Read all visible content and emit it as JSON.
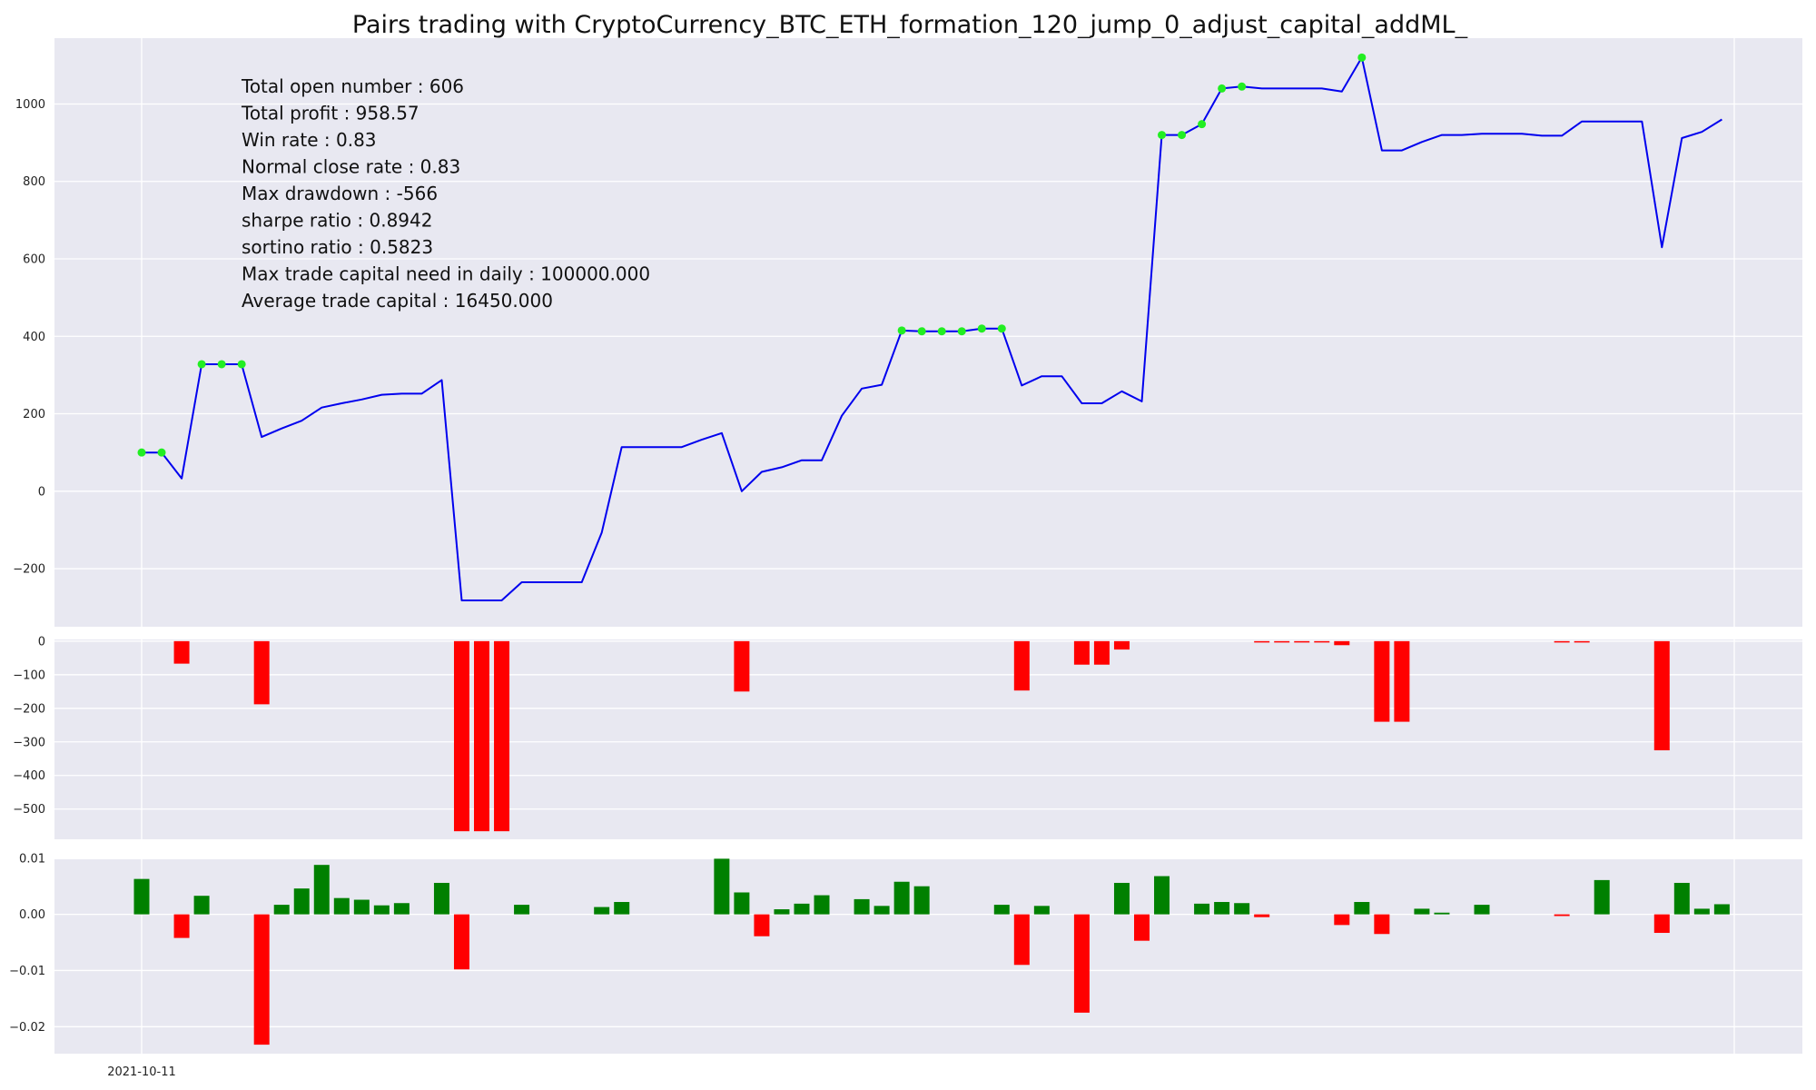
{
  "chart_data": {
    "title": "Pairs trading with CryptoCurrency_BTC_ETH_formation_120_jump_0_adjust_capital_addML_",
    "stats": [
      "Total open number : 606",
      "Total profit : 958.57",
      "Win rate : 0.83",
      "Normal close rate : 0.83",
      "Max drawdown : -566",
      "sharpe ratio : 0.8942",
      "sortino ratio : 0.5823",
      "Max trade capital need in daily : 100000.000",
      "Average trade capital : 16450.000"
    ],
    "x_start_label": "2021-10-11",
    "colors": {
      "line": "#0000ee",
      "marker": "#22ee22",
      "up_bar": "#008000",
      "down_bar": "#ff0000",
      "panel_bg": "#e8e8f1",
      "grid": "#ffffff"
    },
    "panels": [
      {
        "type": "line",
        "name": "cumulative-profit",
        "ylim": [
          -350,
          1170
        ],
        "yticks": [
          -200,
          0,
          200,
          400,
          600,
          800,
          1000
        ],
        "ytick_labels": [
          "−200",
          "0",
          "200",
          "400",
          "600",
          "800",
          "1000"
        ],
        "values": [
          100,
          100,
          33,
          328,
          328,
          328,
          140,
          162,
          182,
          216,
          227,
          237,
          249,
          252,
          252,
          287,
          -282,
          -282,
          -282,
          -235,
          -235,
          -235,
          -235,
          -107,
          114,
          114,
          114,
          114,
          133,
          150,
          0,
          50,
          62,
          80,
          80,
          195,
          265,
          275,
          415,
          413,
          413,
          413,
          420,
          420,
          273,
          297,
          297,
          227,
          227,
          258,
          232,
          920,
          920,
          948,
          1040,
          1045,
          1040,
          1040,
          1040,
          1040,
          1032,
          1120,
          880,
          880,
          902,
          920,
          920,
          923,
          923,
          923,
          918,
          918,
          955,
          955,
          955,
          955,
          630,
          912,
          928,
          960
        ],
        "markers": [
          0,
          1,
          3,
          4,
          5,
          38,
          39,
          40,
          41,
          42,
          43,
          51,
          52,
          53,
          54,
          55,
          61
        ]
      },
      {
        "type": "bar",
        "name": "drawdown",
        "ylim": [
          -590,
          5
        ],
        "yticks": [
          0,
          -100,
          -200,
          -300,
          -400,
          -500
        ],
        "ytick_labels": [
          "0",
          "−100",
          "−200",
          "−300",
          "−400",
          "−500"
        ],
        "values": [
          0,
          0,
          -67,
          0,
          0,
          0,
          -188,
          0,
          0,
          0,
          0,
          0,
          0,
          0,
          0,
          0,
          -566,
          -566,
          -566,
          0,
          0,
          0,
          0,
          0,
          0,
          0,
          0,
          0,
          0,
          0,
          -150,
          0,
          0,
          0,
          0,
          0,
          0,
          0,
          0,
          0,
          0,
          0,
          0,
          0,
          -147,
          0,
          0,
          -70,
          -70,
          -25,
          0,
          0,
          0,
          0,
          0,
          0,
          -4,
          -4,
          -4,
          -4,
          -12,
          0,
          -240,
          -240,
          0,
          0,
          0,
          0,
          0,
          0,
          0,
          -4,
          -4,
          0,
          0,
          0,
          -325,
          0,
          0,
          0
        ]
      },
      {
        "type": "bar",
        "name": "daily-return",
        "ylim": [
          -0.0248,
          0.0098
        ],
        "yticks": [
          0.01,
          0.0,
          -0.01,
          -0.02
        ],
        "ytick_labels": [
          "0.01",
          "0.00",
          "−0.01",
          "−0.02"
        ],
        "values": [
          0.0063,
          0,
          -0.0042,
          0.0033,
          0,
          0,
          -0.0232,
          0.0017,
          0.0046,
          0.0088,
          0.0029,
          0.0026,
          0.0016,
          0.002,
          0,
          0.0056,
          -0.0098,
          0,
          0,
          0.0017,
          0,
          0,
          0,
          0.0013,
          0.0022,
          0,
          0,
          0,
          0,
          0.0099,
          0.0039,
          -0.0039,
          0.0009,
          0.0019,
          0.0034,
          0,
          0.0027,
          0.0015,
          0.0058,
          0.005,
          0,
          0,
          0,
          0.0017,
          -0.009,
          0.0015,
          0,
          -0.0175,
          0,
          0.0056,
          -0.0047,
          0.0068,
          0,
          0.0019,
          0.0022,
          0.002,
          -0.0005,
          0,
          0,
          0,
          -0.0019,
          0.0022,
          -0.0035,
          0,
          0.001,
          0.0003,
          0,
          0.0017,
          0,
          0,
          0,
          -0.0003,
          0,
          0.0061,
          0,
          0,
          -0.0033,
          0.0056,
          0.001,
          0.0018
        ]
      }
    ]
  }
}
